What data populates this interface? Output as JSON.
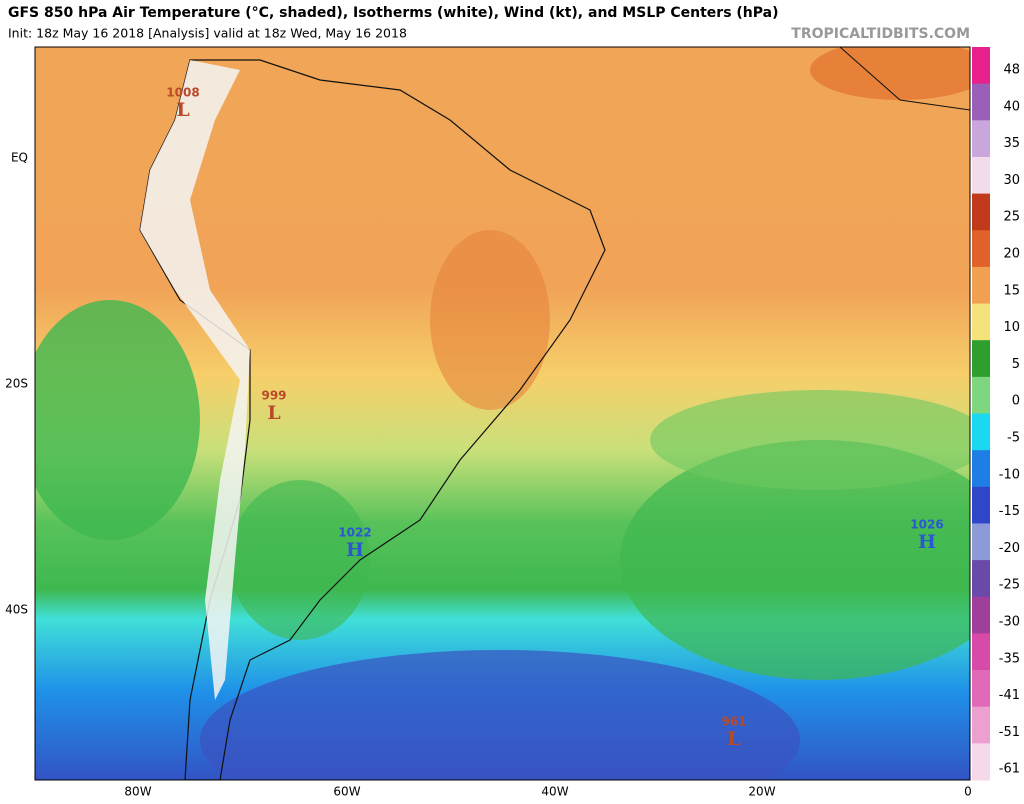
{
  "header": {
    "title": "GFS 850 hPa Air Temperature (°C, shaded), Isotherms (white), Wind (kt), and MSLP Centers (hPa)",
    "subtitle": "Init: 18z May 16 2018   [Analysis]   valid at 18z Wed, May 16 2018",
    "credit": "TROPICALTIDBITS.COM"
  },
  "map": {
    "lat_labels": [
      "EQ",
      "20S",
      "40S"
    ],
    "lon_labels": [
      "80W",
      "60W",
      "40W",
      "20W",
      "0"
    ],
    "centers": [
      {
        "pressure": "1008",
        "letter": "L"
      },
      {
        "pressure": "999",
        "letter": "L"
      },
      {
        "pressure": "1022",
        "letter": "H"
      },
      {
        "pressure": "1026",
        "letter": "H"
      },
      {
        "pressure": "961",
        "letter": "L"
      }
    ]
  },
  "colorbar": {
    "labels": [
      "48",
      "40",
      "35",
      "30",
      "25",
      "20",
      "15",
      "10",
      "5",
      "0",
      "-5",
      "-10",
      "-15",
      "-20",
      "-25",
      "-30",
      "-35",
      "-41",
      "-51",
      "-61"
    ],
    "colors": [
      "#e8208e",
      "#9a5fb8",
      "#c9a6dc",
      "#f2dcec",
      "#c23a1c",
      "#e0622a",
      "#f0a050",
      "#f4e27a",
      "#2e9e2e",
      "#7ed67e",
      "#19d8f0",
      "#1f7ee6",
      "#3046c8",
      "#8d9ad8",
      "#6a4aa8",
      "#a03e9c",
      "#d84aa8",
      "#e06ab8",
      "#eca0d0",
      "#f5d8ea"
    ]
  }
}
